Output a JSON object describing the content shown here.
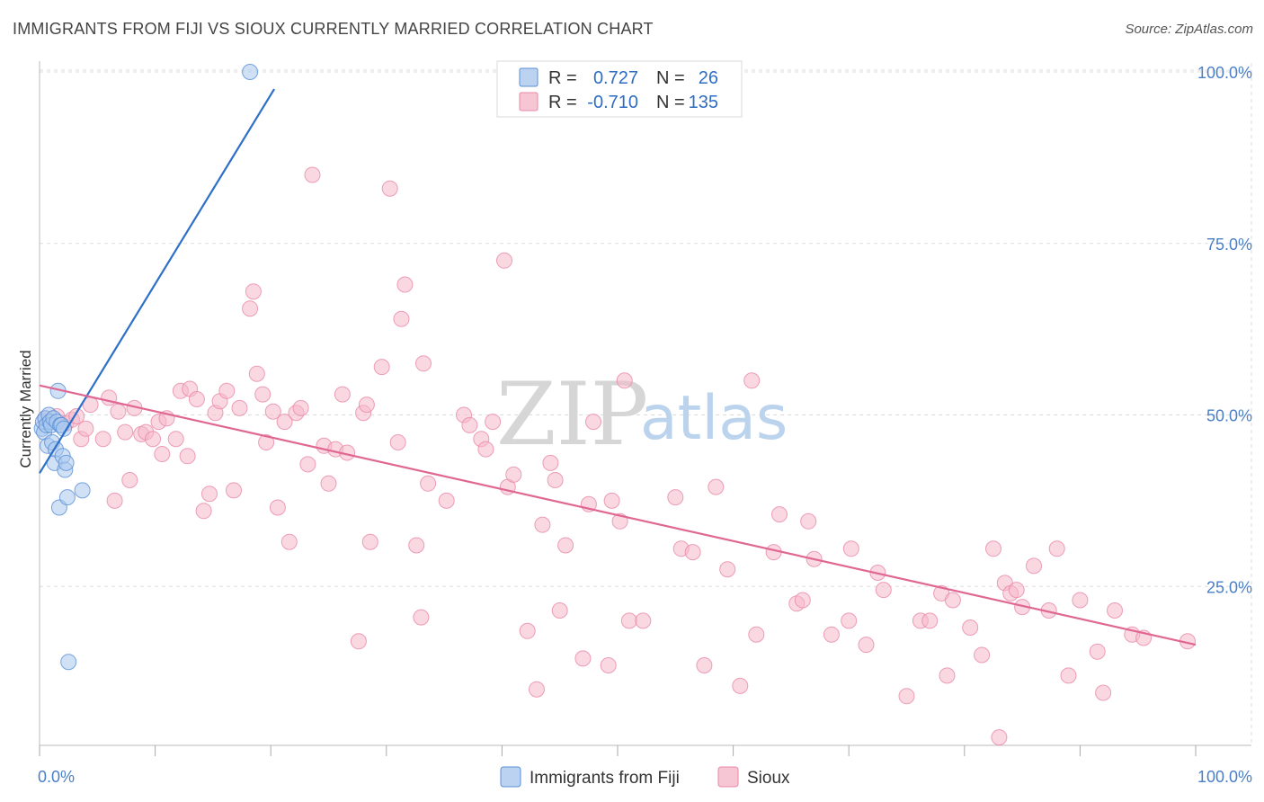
{
  "title": "IMMIGRANTS FROM FIJI VS SIOUX CURRENTLY MARRIED CORRELATION CHART",
  "source": "Source: ZipAtlas.com",
  "watermark": {
    "zip": "ZIP",
    "atlas": "atlas"
  },
  "colors": {
    "fiji_fill": "#aac8ee",
    "fiji_stroke": "#5a8fd6",
    "fiji_line": "#2e70c8",
    "sioux_fill": "#f5b8cb",
    "sioux_stroke": "#e888a8",
    "sioux_line": "#e06792",
    "grid": "#dddddd",
    "axis_label": "#4a7fc8"
  },
  "legend": {
    "rows": [
      {
        "r_label": "R =",
        "r_value": "0.727",
        "n_label": "N =",
        "n_value": "26"
      },
      {
        "r_label": "R =",
        "r_value": "-0.710",
        "n_label": "N =",
        "n_value": "135"
      }
    ]
  },
  "chart_data": {
    "type": "scatter",
    "title": "IMMIGRANTS FROM FIJI VS SIOUX CURRENTLY MARRIED CORRELATION CHART",
    "xlabel": "",
    "ylabel": "Currently Married",
    "xlim": [
      0,
      100
    ],
    "ylim": [
      0,
      104
    ],
    "x_tick_labels": [
      "0.0%",
      "100.0%"
    ],
    "y_ticks": [
      25,
      50,
      75,
      100
    ],
    "y_tick_labels": [
      "25.0%",
      "50.0%",
      "75.0%",
      "100.0%"
    ],
    "grid": true,
    "series": [
      {
        "name": "Immigrants from Fiji",
        "r": 0.727,
        "n": 26,
        "trend": {
          "x": [
            0,
            20.3
          ],
          "y": [
            41.5,
            97.5
          ]
        },
        "points": [
          [
            0.2,
            48.0
          ],
          [
            0.3,
            49.0
          ],
          [
            0.4,
            47.5
          ],
          [
            0.5,
            49.5
          ],
          [
            0.6,
            48.5
          ],
          [
            0.7,
            45.5
          ],
          [
            0.8,
            50.0
          ],
          [
            0.9,
            49.0
          ],
          [
            1.0,
            48.5
          ],
          [
            1.1,
            46.0
          ],
          [
            1.2,
            49.5
          ],
          [
            1.3,
            43.0
          ],
          [
            1.4,
            45.0
          ],
          [
            1.5,
            49.0
          ],
          [
            1.6,
            53.5
          ],
          [
            1.7,
            36.5
          ],
          [
            1.8,
            48.5
          ],
          [
            1.9,
            48.5
          ],
          [
            2.0,
            44.0
          ],
          [
            2.1,
            48.0
          ],
          [
            2.2,
            42.0
          ],
          [
            2.3,
            43.0
          ],
          [
            2.4,
            38.0
          ],
          [
            2.5,
            14.0
          ],
          [
            3.7,
            39.0
          ],
          [
            18.2,
            100.0
          ]
        ]
      },
      {
        "name": "Sioux",
        "r": -0.71,
        "n": 135,
        "trend": {
          "x": [
            0,
            100
          ],
          "y": [
            54.3,
            16.5
          ]
        },
        "points": [
          [
            0.5,
            49.5
          ],
          [
            1.5,
            49.8
          ],
          [
            2.3,
            48.8
          ],
          [
            2.8,
            49.3
          ],
          [
            3.2,
            49.8
          ],
          [
            3.6,
            46.5
          ],
          [
            4.0,
            48.0
          ],
          [
            4.4,
            51.5
          ],
          [
            5.5,
            46.5
          ],
          [
            6.0,
            52.5
          ],
          [
            6.5,
            37.5
          ],
          [
            6.8,
            50.5
          ],
          [
            7.4,
            47.5
          ],
          [
            7.8,
            40.5
          ],
          [
            8.2,
            51.0
          ],
          [
            8.8,
            47.2
          ],
          [
            9.2,
            47.5
          ],
          [
            9.8,
            46.5
          ],
          [
            10.3,
            49.0
          ],
          [
            10.6,
            44.3
          ],
          [
            11.0,
            49.5
          ],
          [
            11.8,
            46.5
          ],
          [
            12.2,
            53.5
          ],
          [
            12.8,
            44.0
          ],
          [
            13.0,
            53.8
          ],
          [
            13.6,
            52.3
          ],
          [
            14.2,
            36.0
          ],
          [
            14.7,
            38.5
          ],
          [
            15.2,
            50.3
          ],
          [
            15.6,
            52.0
          ],
          [
            16.2,
            53.5
          ],
          [
            16.8,
            39.0
          ],
          [
            17.3,
            51.0
          ],
          [
            18.2,
            65.5
          ],
          [
            18.5,
            68.0
          ],
          [
            18.8,
            56.0
          ],
          [
            19.3,
            53.0
          ],
          [
            19.6,
            46.0
          ],
          [
            20.2,
            50.5
          ],
          [
            20.6,
            36.5
          ],
          [
            21.2,
            49.0
          ],
          [
            21.6,
            31.5
          ],
          [
            22.2,
            50.3
          ],
          [
            22.6,
            51.0
          ],
          [
            23.2,
            42.8
          ],
          [
            23.6,
            85.0
          ],
          [
            24.6,
            45.5
          ],
          [
            25.0,
            40.0
          ],
          [
            25.6,
            45.0
          ],
          [
            26.2,
            53.0
          ],
          [
            26.6,
            44.5
          ],
          [
            27.6,
            17.0
          ],
          [
            28.0,
            50.3
          ],
          [
            28.3,
            51.5
          ],
          [
            28.6,
            31.5
          ],
          [
            29.6,
            57.0
          ],
          [
            30.3,
            83.0
          ],
          [
            31.0,
            46.0
          ],
          [
            31.3,
            64.0
          ],
          [
            31.6,
            69.0
          ],
          [
            32.6,
            31.0
          ],
          [
            33.0,
            20.5
          ],
          [
            33.2,
            57.5
          ],
          [
            33.6,
            40.0
          ],
          [
            35.2,
            37.5
          ],
          [
            36.7,
            50.0
          ],
          [
            37.2,
            48.5
          ],
          [
            38.2,
            46.5
          ],
          [
            38.6,
            45.0
          ],
          [
            39.2,
            49.0
          ],
          [
            40.2,
            72.5
          ],
          [
            40.5,
            39.5
          ],
          [
            41.0,
            41.3
          ],
          [
            42.2,
            18.5
          ],
          [
            43.0,
            10.0
          ],
          [
            43.5,
            34.0
          ],
          [
            44.2,
            43.0
          ],
          [
            44.6,
            40.5
          ],
          [
            45.0,
            21.5
          ],
          [
            45.5,
            31.0
          ],
          [
            47.0,
            14.5
          ],
          [
            47.5,
            37.0
          ],
          [
            47.9,
            49.0
          ],
          [
            49.2,
            13.5
          ],
          [
            49.5,
            37.5
          ],
          [
            50.2,
            34.5
          ],
          [
            50.6,
            55.0
          ],
          [
            51.0,
            20.0
          ],
          [
            52.2,
            20.0
          ],
          [
            55.0,
            38.0
          ],
          [
            55.5,
            30.5
          ],
          [
            56.5,
            30.0
          ],
          [
            57.5,
            13.5
          ],
          [
            58.5,
            39.5
          ],
          [
            59.5,
            27.5
          ],
          [
            60.6,
            10.5
          ],
          [
            61.6,
            55.0
          ],
          [
            62.0,
            18.0
          ],
          [
            63.5,
            30.0
          ],
          [
            64.0,
            35.5
          ],
          [
            65.5,
            22.5
          ],
          [
            66.0,
            23.0
          ],
          [
            66.5,
            34.5
          ],
          [
            67.0,
            29.0
          ],
          [
            68.5,
            18.0
          ],
          [
            70.0,
            20.0
          ],
          [
            70.2,
            30.5
          ],
          [
            71.5,
            16.5
          ],
          [
            72.5,
            27.0
          ],
          [
            73.0,
            24.5
          ],
          [
            75.0,
            9.0
          ],
          [
            76.2,
            20.0
          ],
          [
            77.0,
            20.0
          ],
          [
            78.0,
            24.0
          ],
          [
            78.5,
            12.0
          ],
          [
            79.0,
            23.0
          ],
          [
            80.5,
            19.0
          ],
          [
            81.5,
            15.0
          ],
          [
            82.5,
            30.5
          ],
          [
            83.0,
            3.0
          ],
          [
            83.5,
            25.5
          ],
          [
            84.0,
            24.0
          ],
          [
            84.5,
            24.5
          ],
          [
            85.0,
            22.0
          ],
          [
            86.0,
            28.0
          ],
          [
            87.3,
            21.5
          ],
          [
            88.0,
            30.5
          ],
          [
            89.0,
            12.0
          ],
          [
            90.0,
            23.0
          ],
          [
            91.5,
            15.5
          ],
          [
            92.0,
            9.5
          ],
          [
            93.0,
            21.5
          ],
          [
            94.5,
            18.0
          ],
          [
            99.3,
            17.0
          ],
          [
            95.5,
            17.5
          ]
        ]
      }
    ]
  }
}
